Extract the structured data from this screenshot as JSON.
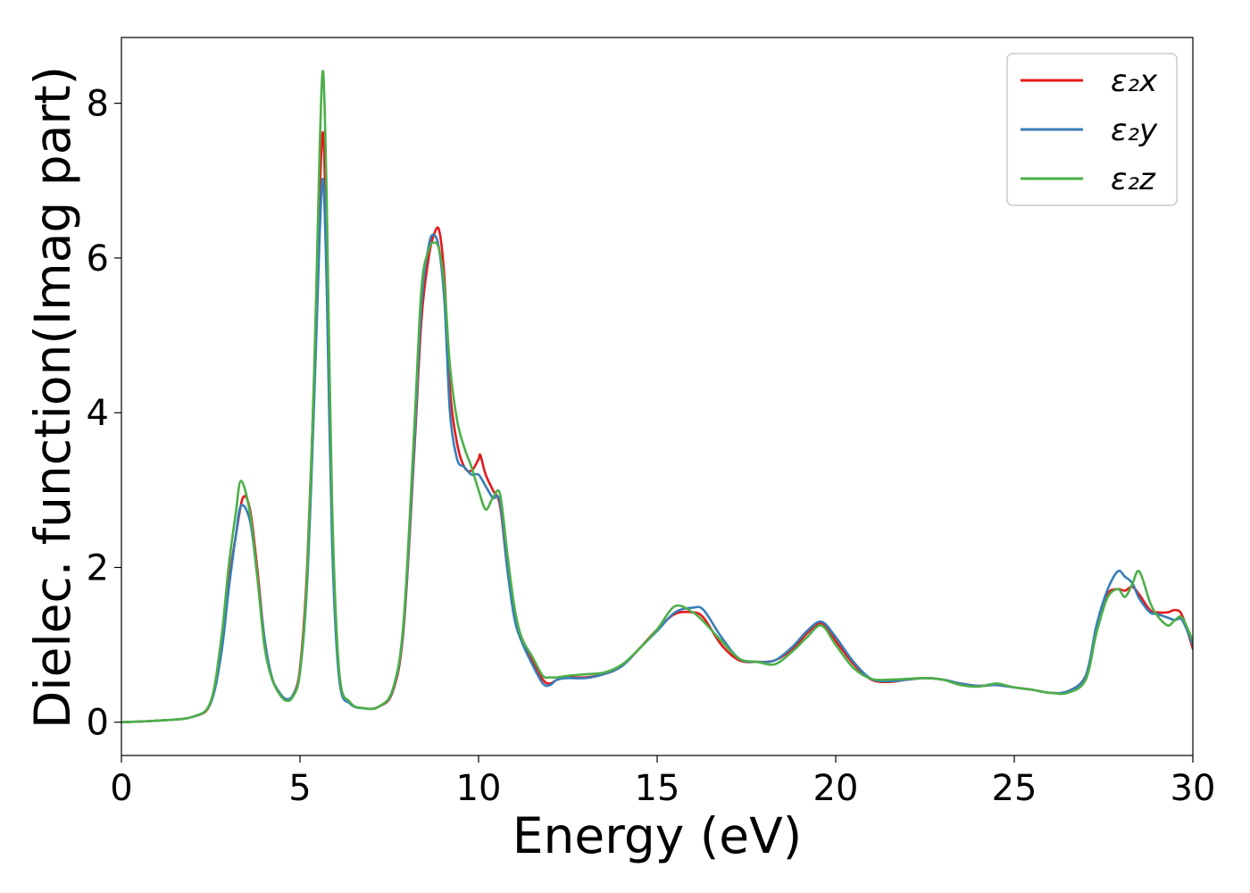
{
  "chart_data": {
    "type": "line",
    "xlabel": "Energy (eV)",
    "ylabel": "Dielec. function(Imag part)",
    "xlim": [
      0,
      30
    ],
    "ylim": [
      -0.43,
      8.85
    ],
    "xticks": [
      0,
      5,
      10,
      15,
      20,
      25,
      30
    ],
    "yticks": [
      0,
      2,
      4,
      6,
      8
    ],
    "grid": false,
    "legend_position": "top-right",
    "series": [
      {
        "name": "ε₂x",
        "color": "#e41a1c",
        "x": [
          0,
          1,
          2,
          2.5,
          2.8,
          3.0,
          3.2,
          3.4,
          3.6,
          3.8,
          4.0,
          4.2,
          4.4,
          4.6,
          4.8,
          5.0,
          5.2,
          5.4,
          5.55,
          5.65,
          5.75,
          5.9,
          6.1,
          6.4,
          6.8,
          7.2,
          7.6,
          7.9,
          8.2,
          8.4,
          8.6,
          8.75,
          8.9,
          9.05,
          9.2,
          9.4,
          9.6,
          9.8,
          10.0,
          10.05,
          10.2,
          10.4,
          10.6,
          10.8,
          11.0,
          11.2,
          11.5,
          11.8,
          12.0,
          12.2,
          12.5,
          13.0,
          13.5,
          14.0,
          14.5,
          15.0,
          15.5,
          16.0,
          16.3,
          16.8,
          17.3,
          17.8,
          18.3,
          18.8,
          19.2,
          19.6,
          20.0,
          20.5,
          21.0,
          21.5,
          22.0,
          22.5,
          23.0,
          23.5,
          24.0,
          24.5,
          25.0,
          25.5,
          26.0,
          26.5,
          27.0,
          27.3,
          27.6,
          27.9,
          28.1,
          28.3,
          28.5,
          28.8,
          29.0,
          29.3,
          29.5,
          29.7,
          30.0
        ],
        "values": [
          0.0,
          0.02,
          0.07,
          0.25,
          1.0,
          1.8,
          2.4,
          2.9,
          2.75,
          2.0,
          1.1,
          0.6,
          0.4,
          0.3,
          0.35,
          0.7,
          2.0,
          4.5,
          6.8,
          7.6,
          6.0,
          2.5,
          0.6,
          0.25,
          0.18,
          0.2,
          0.4,
          1.2,
          3.5,
          5.2,
          6.0,
          6.3,
          6.35,
          5.7,
          4.3,
          3.6,
          3.3,
          3.25,
          3.4,
          3.45,
          3.2,
          3.0,
          2.8,
          2.0,
          1.4,
          1.1,
          0.8,
          0.55,
          0.5,
          0.55,
          0.58,
          0.58,
          0.62,
          0.72,
          0.95,
          1.2,
          1.4,
          1.42,
          1.35,
          1.0,
          0.8,
          0.78,
          0.8,
          0.95,
          1.15,
          1.28,
          1.05,
          0.75,
          0.55,
          0.52,
          0.55,
          0.57,
          0.55,
          0.5,
          0.47,
          0.48,
          0.45,
          0.42,
          0.38,
          0.4,
          0.6,
          1.2,
          1.65,
          1.72,
          1.7,
          1.75,
          1.65,
          1.45,
          1.42,
          1.42,
          1.45,
          1.38,
          0.95
        ]
      },
      {
        "name": "ε₂y",
        "color": "#377eb8",
        "x": [
          0,
          1,
          2,
          2.5,
          2.8,
          3.0,
          3.2,
          3.35,
          3.6,
          3.8,
          4.0,
          4.2,
          4.4,
          4.6,
          4.8,
          5.0,
          5.2,
          5.4,
          5.55,
          5.65,
          5.75,
          5.9,
          6.1,
          6.4,
          6.8,
          7.2,
          7.6,
          7.9,
          8.2,
          8.4,
          8.6,
          8.75,
          8.9,
          9.05,
          9.2,
          9.4,
          9.6,
          9.8,
          10.0,
          10.2,
          10.4,
          10.6,
          10.8,
          11.0,
          11.2,
          11.5,
          11.8,
          12.0,
          12.2,
          12.5,
          13.0,
          13.5,
          14.0,
          14.5,
          15.0,
          15.5,
          16.0,
          16.3,
          16.8,
          17.3,
          17.8,
          18.3,
          18.8,
          19.2,
          19.6,
          20.0,
          20.5,
          21.0,
          21.5,
          22.0,
          22.5,
          23.0,
          23.5,
          24.0,
          24.5,
          25.0,
          25.5,
          26.0,
          26.5,
          27.0,
          27.3,
          27.6,
          27.9,
          28.1,
          28.3,
          28.5,
          28.8,
          29.0,
          29.3,
          29.5,
          29.7,
          30.0
        ],
        "values": [
          0.0,
          0.02,
          0.07,
          0.25,
          0.9,
          1.7,
          2.4,
          2.8,
          2.6,
          1.9,
          1.1,
          0.6,
          0.4,
          0.3,
          0.35,
          0.65,
          1.8,
          4.2,
          6.3,
          7.0,
          5.6,
          2.3,
          0.55,
          0.24,
          0.18,
          0.2,
          0.42,
          1.25,
          3.6,
          5.4,
          6.15,
          6.3,
          6.1,
          5.4,
          4.0,
          3.4,
          3.3,
          3.2,
          3.2,
          3.05,
          2.9,
          2.85,
          2.0,
          1.35,
          1.05,
          0.75,
          0.5,
          0.48,
          0.55,
          0.57,
          0.57,
          0.62,
          0.72,
          0.95,
          1.18,
          1.42,
          1.48,
          1.45,
          1.1,
          0.82,
          0.78,
          0.8,
          0.98,
          1.18,
          1.3,
          1.1,
          0.78,
          0.56,
          0.53,
          0.55,
          0.57,
          0.55,
          0.5,
          0.47,
          0.48,
          0.45,
          0.42,
          0.38,
          0.4,
          0.6,
          1.25,
          1.7,
          1.95,
          1.88,
          1.8,
          1.6,
          1.42,
          1.4,
          1.35,
          1.32,
          1.32,
          1.0
        ]
      },
      {
        "name": "ε₂z",
        "color": "#4daf4a",
        "x": [
          0,
          1,
          2,
          2.5,
          2.8,
          3.0,
          3.2,
          3.35,
          3.6,
          3.8,
          4.0,
          4.2,
          4.4,
          4.6,
          4.8,
          5.0,
          5.2,
          5.4,
          5.55,
          5.65,
          5.75,
          5.9,
          6.1,
          6.4,
          6.8,
          7.2,
          7.6,
          7.9,
          8.2,
          8.4,
          8.6,
          8.75,
          8.9,
          9.05,
          9.2,
          9.4,
          9.6,
          9.8,
          10.0,
          10.2,
          10.4,
          10.6,
          10.8,
          11.0,
          11.2,
          11.5,
          11.8,
          12.0,
          12.2,
          12.5,
          13.0,
          13.5,
          14.0,
          14.5,
          15.0,
          15.5,
          16.0,
          16.3,
          16.8,
          17.3,
          17.8,
          18.3,
          18.8,
          19.2,
          19.6,
          20.0,
          20.5,
          21.0,
          21.5,
          22.0,
          22.5,
          23.0,
          23.5,
          24.0,
          24.5,
          25.0,
          25.5,
          26.0,
          26.5,
          27.0,
          27.3,
          27.6,
          27.9,
          28.1,
          28.3,
          28.5,
          28.8,
          29.0,
          29.3,
          29.5,
          29.7,
          30.0
        ],
        "values": [
          0.0,
          0.02,
          0.07,
          0.27,
          1.1,
          2.0,
          2.7,
          3.12,
          2.7,
          1.9,
          1.0,
          0.58,
          0.38,
          0.28,
          0.33,
          0.65,
          1.9,
          4.6,
          7.4,
          8.4,
          6.7,
          2.8,
          0.65,
          0.26,
          0.18,
          0.2,
          0.43,
          1.3,
          3.8,
          5.6,
          6.1,
          6.2,
          6.1,
          5.6,
          4.6,
          3.9,
          3.55,
          3.3,
          3.0,
          2.75,
          2.9,
          2.95,
          2.2,
          1.5,
          1.1,
          0.85,
          0.6,
          0.58,
          0.58,
          0.6,
          0.62,
          0.64,
          0.74,
          0.95,
          1.2,
          1.5,
          1.42,
          1.3,
          1.05,
          0.82,
          0.78,
          0.75,
          0.92,
          1.1,
          1.25,
          1.0,
          0.7,
          0.56,
          0.55,
          0.56,
          0.57,
          0.55,
          0.48,
          0.46,
          0.5,
          0.45,
          0.42,
          0.38,
          0.38,
          0.55,
          1.15,
          1.6,
          1.72,
          1.62,
          1.78,
          1.95,
          1.55,
          1.38,
          1.25,
          1.32,
          1.35,
          1.05
        ]
      }
    ]
  }
}
